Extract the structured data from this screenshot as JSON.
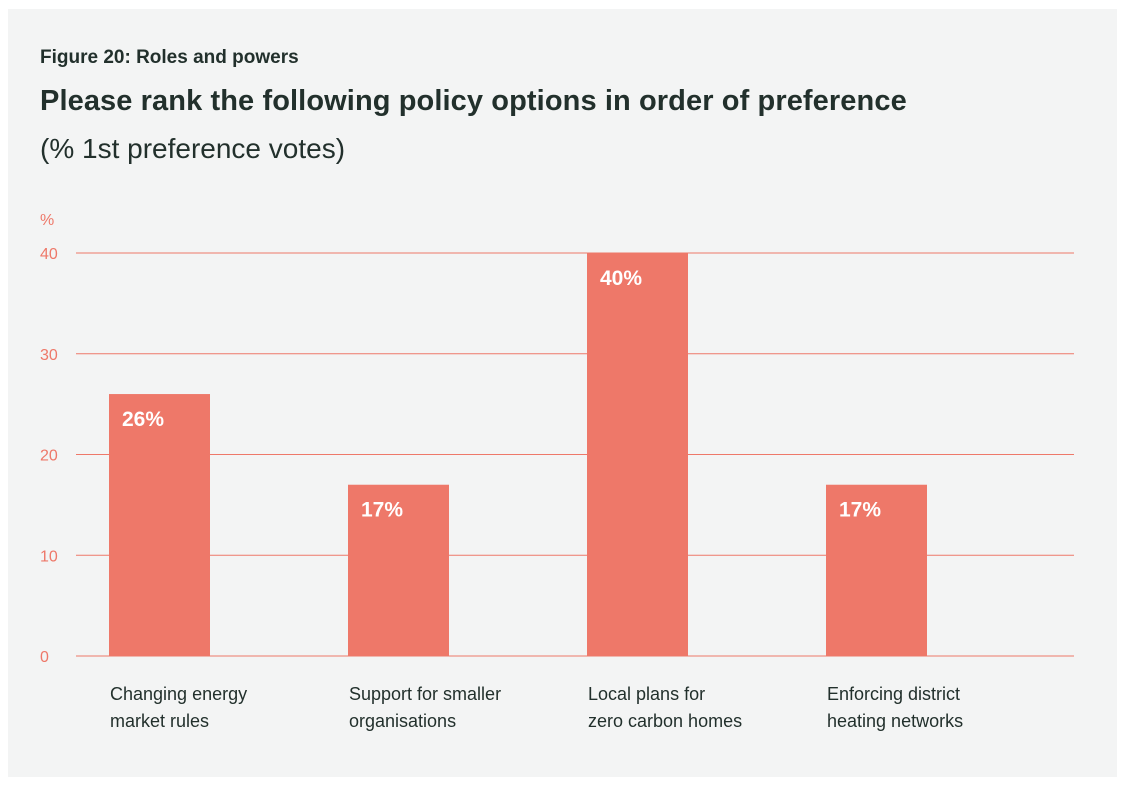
{
  "figure_label": "Figure 20: Roles and powers",
  "title": "Please rank the following policy options in order of preference",
  "subtitle": "(% 1st preference votes)",
  "colors": {
    "panel_background": "#f3f4f4",
    "bar": "#ee7869",
    "axis_accent": "#ee7869",
    "title_text": "#22302c",
    "bar_label_text": "#ffffff"
  },
  "chart_data": {
    "type": "bar",
    "ylabel": "%",
    "ylim": [
      0,
      40
    ],
    "yticks": [
      0,
      10,
      20,
      30,
      40
    ],
    "grid": true,
    "categories": [
      [
        "Changing energy",
        "market rules"
      ],
      [
        "Support for smaller",
        "organisations"
      ],
      [
        "Local plans for",
        "zero carbon homes"
      ],
      [
        "Enforcing district",
        "heating networks"
      ]
    ],
    "values": [
      26,
      17,
      40,
      17
    ],
    "data_labels": [
      "26%",
      "17%",
      "40%",
      "17%"
    ]
  }
}
